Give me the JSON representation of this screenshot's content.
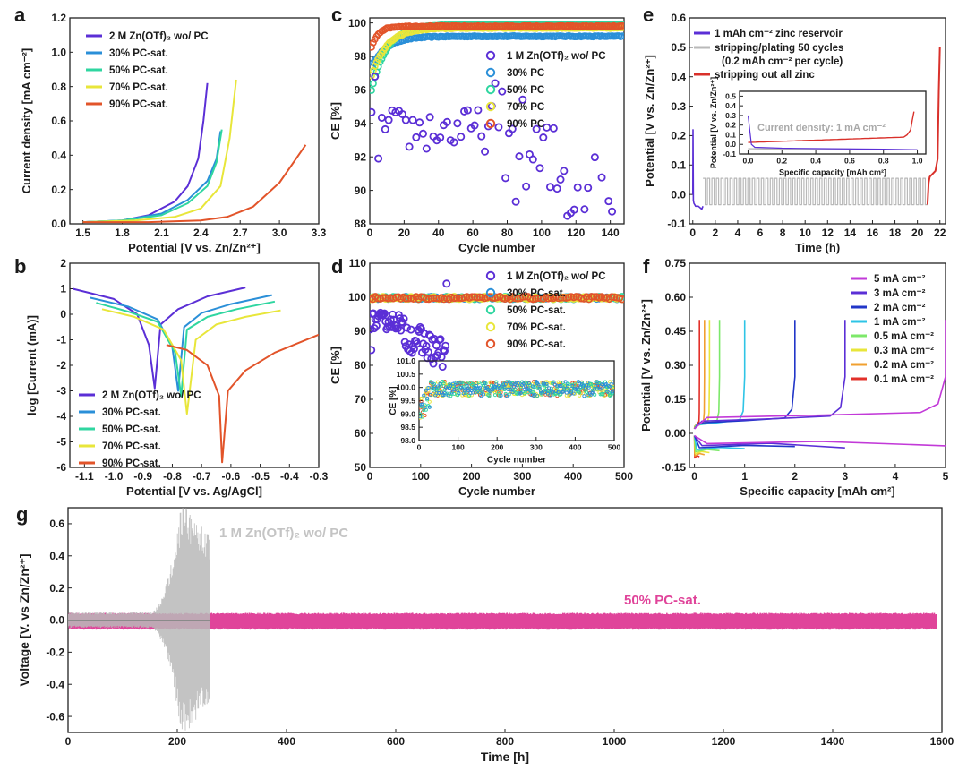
{
  "panels": {
    "a": "a",
    "b": "b",
    "c": "c",
    "d": "d",
    "e": "e",
    "f": "f",
    "g": "g"
  },
  "colors": {
    "wo": "#5b2fd6",
    "p30": "#2a8fd8",
    "p50": "#2fd6a0",
    "p70": "#e8e63a",
    "p90": "#e2542a",
    "gray": "#b9b9b9",
    "pink": "#e0449a",
    "red": "#d9302a",
    "f5": "#c23ad8",
    "f3": "#5b2fd6",
    "f2": "#2136c8",
    "f1": "#2ec4e6",
    "f05": "#7de86a",
    "f03": "#e8e63a",
    "f02": "#f0a030",
    "f01": "#e2302a"
  },
  "chart_data": [
    {
      "id": "a",
      "type": "line",
      "title": "",
      "xlabel": "Potential [V vs. Zn/Zn²⁺]",
      "ylabel": "Current density [mA cm⁻²]",
      "xlim": [
        1.4,
        3.3
      ],
      "ylim": [
        0,
        1.2
      ],
      "xticks": [
        "1.5",
        "1.8",
        "2.1",
        "2.4",
        "2.7",
        "3.0",
        "3.3"
      ],
      "yticks": [
        "0.0",
        "0.2",
        "0.4",
        "0.6",
        "0.8",
        "1.0",
        "1.2"
      ],
      "series": [
        {
          "name": "2 M Zn(OTf)₂ wo/ PC",
          "color": "#5b2fd6",
          "x": [
            1.5,
            1.8,
            2.0,
            2.2,
            2.3,
            2.38,
            2.42,
            2.45
          ],
          "y": [
            0.01,
            0.02,
            0.05,
            0.13,
            0.22,
            0.38,
            0.6,
            0.82
          ]
        },
        {
          "name": "30% PC-sat.",
          "color": "#2a8fd8",
          "x": [
            1.5,
            1.8,
            2.1,
            2.3,
            2.45,
            2.52,
            2.55
          ],
          "y": [
            0.01,
            0.02,
            0.06,
            0.14,
            0.25,
            0.38,
            0.54
          ]
        },
        {
          "name": "50% PC-sat.",
          "color": "#2fd6a0",
          "x": [
            1.5,
            1.8,
            2.1,
            2.3,
            2.45,
            2.52,
            2.56
          ],
          "y": [
            0.01,
            0.02,
            0.05,
            0.12,
            0.22,
            0.36,
            0.55
          ]
        },
        {
          "name": "70% PC-sat.",
          "color": "#e8e63a",
          "x": [
            1.5,
            1.9,
            2.2,
            2.4,
            2.55,
            2.62,
            2.67
          ],
          "y": [
            0.01,
            0.02,
            0.04,
            0.09,
            0.22,
            0.5,
            0.84
          ]
        },
        {
          "name": "90% PC-sat.",
          "color": "#e2542a",
          "x": [
            1.5,
            2.0,
            2.4,
            2.6,
            2.8,
            3.0,
            3.2
          ],
          "y": [
            0.01,
            0.01,
            0.02,
            0.04,
            0.1,
            0.24,
            0.46
          ]
        }
      ]
    },
    {
      "id": "b",
      "type": "line",
      "xlabel": "Potential [V vs. Ag/AgCl]",
      "ylabel": "log [Current (mA)]",
      "xlim": [
        -1.15,
        -0.3
      ],
      "ylim": [
        -6,
        2
      ],
      "xticks": [
        "-1.1",
        "-1.0",
        "-0.9",
        "-0.8",
        "-0.7",
        "-0.6",
        "-0.5",
        "-0.4",
        "-0.3"
      ],
      "yticks": [
        "-6",
        "-5",
        "-4",
        "-3",
        "-2",
        "-1",
        "0",
        "1",
        "2"
      ],
      "series": [
        {
          "name": "2 M Zn(OTf)₂ wo/ PC",
          "color": "#5b2fd6",
          "x": [
            -1.14,
            -1.0,
            -0.92,
            -0.88,
            -0.86,
            -0.84,
            -0.78,
            -0.68,
            -0.55
          ],
          "y": [
            1.0,
            0.6,
            0.0,
            -1.2,
            -2.9,
            -0.4,
            0.2,
            0.7,
            1.05
          ]
        },
        {
          "name": "30% PC-sat.",
          "color": "#2a8fd8",
          "x": [
            -1.08,
            -0.95,
            -0.85,
            -0.8,
            -0.78,
            -0.76,
            -0.7,
            -0.6,
            -0.46
          ],
          "y": [
            0.65,
            0.3,
            -0.2,
            -1.3,
            -3.0,
            -0.5,
            0.05,
            0.4,
            0.75
          ]
        },
        {
          "name": "50% PC-sat.",
          "color": "#2fd6a0",
          "x": [
            -1.06,
            -0.95,
            -0.85,
            -0.79,
            -0.77,
            -0.75,
            -0.68,
            -0.58,
            -0.45
          ],
          "y": [
            0.45,
            0.1,
            -0.3,
            -1.5,
            -3.2,
            -0.6,
            -0.1,
            0.2,
            0.5
          ]
        },
        {
          "name": "70% PC-sat.",
          "color": "#e8e63a",
          "x": [
            -1.04,
            -0.93,
            -0.83,
            -0.77,
            -0.75,
            -0.72,
            -0.65,
            -0.55,
            -0.43
          ],
          "y": [
            0.2,
            -0.1,
            -0.6,
            -1.8,
            -3.9,
            -1.0,
            -0.4,
            -0.1,
            0.15
          ]
        },
        {
          "name": "90% PC-sat.",
          "color": "#e2542a",
          "x": [
            -0.82,
            -0.75,
            -0.68,
            -0.64,
            -0.63,
            -0.61,
            -0.55,
            -0.45,
            -0.3
          ],
          "y": [
            -1.2,
            -1.4,
            -2.0,
            -3.2,
            -5.8,
            -3.0,
            -2.2,
            -1.5,
            -0.8
          ]
        }
      ]
    },
    {
      "id": "c",
      "type": "scatter",
      "xlabel": "Cycle number",
      "ylabel": "CE [%]",
      "xlim": [
        0,
        148
      ],
      "ylim": [
        88,
        100.3
      ],
      "xticks": [
        "0",
        "20",
        "40",
        "60",
        "80",
        "100",
        "120",
        "140"
      ],
      "yticks": [
        "88",
        "90",
        "92",
        "94",
        "96",
        "98",
        "100"
      ],
      "series": [
        {
          "name": "1 M Zn(OTf)₂ wo/ PC",
          "color": "#5b2fd6",
          "description": "scattered 88–96%, decreasing after cycle 70"
        },
        {
          "name": "30% PC",
          "color": "#2a8fd8",
          "final": 99.2
        },
        {
          "name": "50% PC",
          "color": "#2fd6a0",
          "final": 99.9
        },
        {
          "name": "70% PC",
          "color": "#e8e63a",
          "final": 99.7
        },
        {
          "name": "90% PC",
          "color": "#e2542a",
          "final": 99.8
        }
      ]
    },
    {
      "id": "d",
      "type": "scatter",
      "xlabel": "Cycle number",
      "ylabel": "CE [%]",
      "xlim": [
        0,
        500
      ],
      "ylim": [
        50,
        110
      ],
      "xticks": [
        "0",
        "100",
        "200",
        "300",
        "400",
        "500"
      ],
      "yticks": [
        "50",
        "60",
        "70",
        "80",
        "90",
        "100",
        "110"
      ],
      "series": [
        {
          "name": "1 M Zn(OTf)₂ wo/ PC",
          "color": "#5b2fd6"
        },
        {
          "name": "30% PC-sat.",
          "color": "#2a8fd8"
        },
        {
          "name": "50% PC-sat.",
          "color": "#2fd6a0"
        },
        {
          "name": "70% PC-sat.",
          "color": "#e8e63a"
        },
        {
          "name": "90% PC-sat.",
          "color": "#e2542a"
        }
      ],
      "inset": {
        "xlabel": "Cycle number",
        "ylabel": "CE [%]",
        "xlim": [
          0,
          500
        ],
        "ylim": [
          98.0,
          101.0
        ],
        "xticks": [
          "0",
          "100",
          "200",
          "300",
          "400",
          "500"
        ],
        "yticks": [
          "98.0",
          "98.5",
          "99.0",
          "99.5",
          "100.0",
          "100.5",
          "101.0"
        ]
      }
    },
    {
      "id": "e",
      "type": "line",
      "xlabel": "Time (h)",
      "ylabel": "Potential [V vs. Zn/Zn²⁺]",
      "xlim": [
        -0.3,
        22.5
      ],
      "ylim": [
        -0.1,
        0.6
      ],
      "xticks": [
        "0",
        "2",
        "4",
        "6",
        "8",
        "10",
        "12",
        "14",
        "16",
        "18",
        "20",
        "22"
      ],
      "yticks": [
        "-0.1",
        "0.0",
        "0.1",
        "0.2",
        "0.3",
        "0.4",
        "0.5",
        "0.6"
      ],
      "series": [
        {
          "name": "1 mAh cm⁻² zinc reservoir",
          "color": "#5b2fd6"
        },
        {
          "name": "stripping/plating 50 cycles",
          "color": "#b9b9b9"
        },
        {
          "name": "stripping out all zinc",
          "color": "#d9302a"
        }
      ],
      "legend_note": "(0.2 mAh cm⁻² per cycle)",
      "inset": {
        "xlabel": "Specific capacity [mAh cm²]",
        "ylabel": "Potential [V vs. Zn/Zn²⁺]",
        "annotation": "Current density: 1 mA cm⁻²",
        "xticks": [
          "0.0",
          "0.2",
          "0.4",
          "0.6",
          "0.8",
          "1.0"
        ],
        "yticks": [
          "-0.1",
          "0.0",
          "0.1",
          "0.2",
          "0.3",
          "0.4",
          "0.5"
        ]
      }
    },
    {
      "id": "f",
      "type": "line",
      "xlabel": "Specific capacity [mAh cm²]",
      "ylabel": "Potential [V vs. Zn/Zn²⁺]",
      "xlim": [
        -0.1,
        5
      ],
      "ylim": [
        -0.15,
        0.75
      ],
      "xticks": [
        "0",
        "1",
        "2",
        "3",
        "4",
        "5"
      ],
      "yticks": [
        "-0.15",
        "0.00",
        "0.15",
        "0.30",
        "0.45",
        "0.60",
        "0.75"
      ],
      "series": [
        {
          "name": "5 mA cm⁻²",
          "color": "#c23ad8",
          "capacity": 5
        },
        {
          "name": "3 mA cm⁻²",
          "color": "#5b2fd6",
          "capacity": 3
        },
        {
          "name": "2 mA cm⁻²",
          "color": "#2136c8",
          "capacity": 2
        },
        {
          "name": "1 mA cm⁻²",
          "color": "#2ec4e6",
          "capacity": 1
        },
        {
          "name": "0.5 mA cm⁻²",
          "color": "#7de86a",
          "capacity": 0.5
        },
        {
          "name": "0.3 mA cm⁻²",
          "color": "#e8e63a",
          "capacity": 0.3
        },
        {
          "name": "0.2 mA cm⁻²",
          "color": "#f0a030",
          "capacity": 0.2
        },
        {
          "name": "0.1 mA cm⁻²",
          "color": "#e2302a",
          "capacity": 0.1
        }
      ]
    },
    {
      "id": "g",
      "type": "line",
      "xlabel": "Time [h]",
      "ylabel": "Voltage [V. vs Zn/Zn²⁺]",
      "xlim": [
        0,
        1600
      ],
      "ylim": [
        -0.7,
        0.7
      ],
      "xticks": [
        "0",
        "200",
        "400",
        "600",
        "800",
        "1000",
        "1200",
        "1400",
        "1600"
      ],
      "yticks": [
        "-0.6",
        "-0.4",
        "-0.2",
        "0.0",
        "0.2",
        "0.4",
        "0.6"
      ],
      "series": [
        {
          "name": "1 M Zn(OTf)₂ wo/ PC",
          "color": "#b9b9b9",
          "end_hours": 260
        },
        {
          "name": "50% PC-sat.",
          "color": "#e0449a",
          "end_hours": 1590
        }
      ]
    }
  ]
}
